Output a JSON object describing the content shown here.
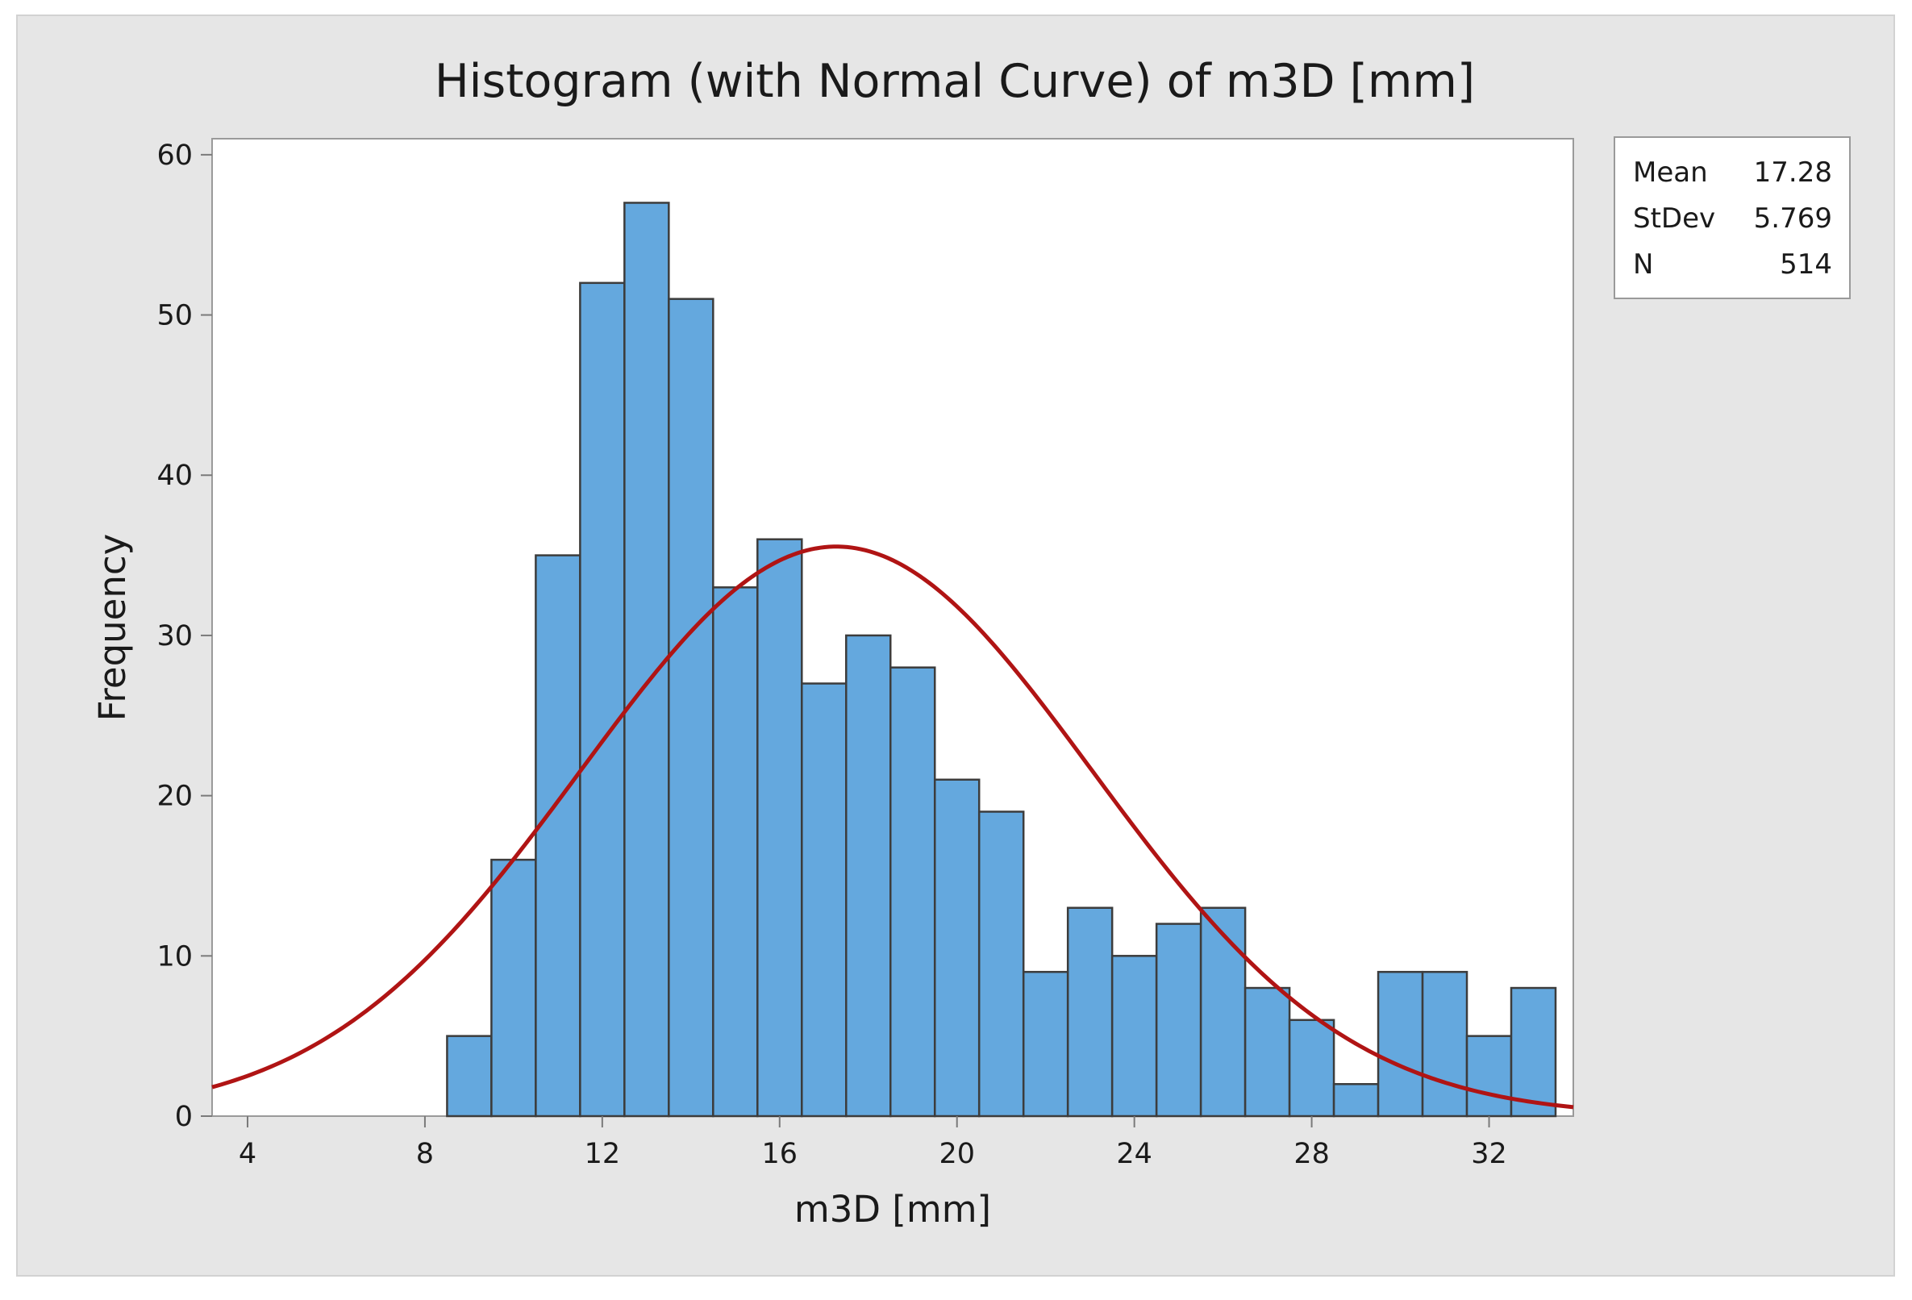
{
  "chart_data": {
    "type": "histogram",
    "title": "Histogram (with Normal Curve) of m3D [mm]",
    "xlabel": "m3D [mm]",
    "ylabel": "Frequency",
    "xlim": [
      3.2,
      33.9
    ],
    "ylim": [
      0,
      61
    ],
    "xticks": [
      4,
      8,
      12,
      16,
      20,
      24,
      28,
      32
    ],
    "yticks": [
      0,
      10,
      20,
      30,
      40,
      50,
      60
    ],
    "bin_width": 1,
    "bins": [
      {
        "start": 8.5,
        "end": 9.5,
        "count": 5
      },
      {
        "start": 9.5,
        "end": 10.5,
        "count": 16
      },
      {
        "start": 10.5,
        "end": 11.5,
        "count": 35
      },
      {
        "start": 11.5,
        "end": 12.5,
        "count": 52
      },
      {
        "start": 12.5,
        "end": 13.5,
        "count": 57
      },
      {
        "start": 13.5,
        "end": 14.5,
        "count": 51
      },
      {
        "start": 14.5,
        "end": 15.5,
        "count": 33
      },
      {
        "start": 15.5,
        "end": 16.5,
        "count": 36
      },
      {
        "start": 16.5,
        "end": 17.5,
        "count": 27
      },
      {
        "start": 17.5,
        "end": 18.5,
        "count": 30
      },
      {
        "start": 18.5,
        "end": 19.5,
        "count": 28
      },
      {
        "start": 19.5,
        "end": 20.5,
        "count": 21
      },
      {
        "start": 20.5,
        "end": 21.5,
        "count": 19
      },
      {
        "start": 21.5,
        "end": 22.5,
        "count": 9
      },
      {
        "start": 22.5,
        "end": 23.5,
        "count": 13
      },
      {
        "start": 23.5,
        "end": 24.5,
        "count": 10
      },
      {
        "start": 24.5,
        "end": 25.5,
        "count": 12
      },
      {
        "start": 25.5,
        "end": 26.5,
        "count": 13
      },
      {
        "start": 26.5,
        "end": 27.5,
        "count": 8
      },
      {
        "start": 27.5,
        "end": 28.5,
        "count": 6
      },
      {
        "start": 28.5,
        "end": 29.5,
        "count": 2
      },
      {
        "start": 29.5,
        "end": 30.5,
        "count": 9
      },
      {
        "start": 30.5,
        "end": 31.5,
        "count": 9
      },
      {
        "start": 31.5,
        "end": 32.5,
        "count": 5
      },
      {
        "start": 32.5,
        "end": 33.5,
        "count": 8
      }
    ],
    "normal_curve": {
      "mean": 17.28,
      "stdev": 5.769,
      "n": 514
    },
    "legend": {
      "position": "top-right",
      "entries": [
        {
          "label": "Mean",
          "value": "17.28"
        },
        {
          "label": "StDev",
          "value": "5.769"
        },
        {
          "label": "N",
          "value": "514"
        }
      ]
    },
    "colors": {
      "bar_fill": "#64a8de",
      "bar_stroke": "#3c3c3c",
      "curve": "#b01414",
      "frame_bg": "#e6e6e6",
      "plot_bg": "#ffffff",
      "axis": "#7a7a7a"
    }
  }
}
